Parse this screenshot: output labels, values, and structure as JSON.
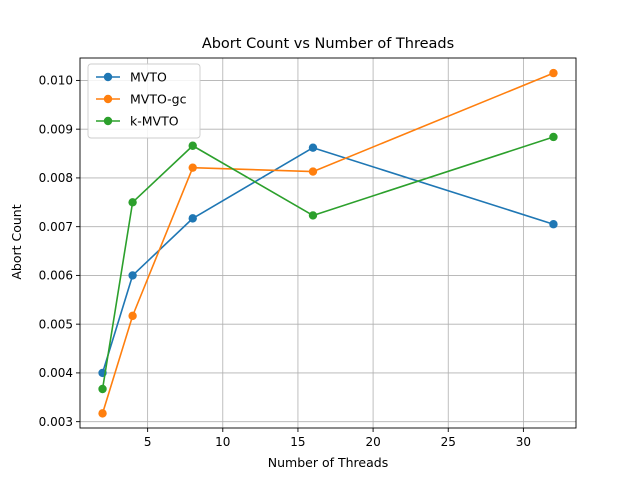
{
  "chart_data": {
    "type": "line",
    "title": "Abort Count vs Number of Threads",
    "xlabel": "Number of Threads",
    "ylabel": "Abort Count",
    "x": [
      2,
      4,
      8,
      16,
      32
    ],
    "xlim": [
      0.5,
      33.5
    ],
    "ylim": [
      0.00287,
      0.01046
    ],
    "xticks": [
      5,
      10,
      15,
      20,
      25,
      30
    ],
    "xtick_labels": [
      "5",
      "10",
      "15",
      "20",
      "25",
      "30"
    ],
    "yticks": [
      0.003,
      0.004,
      0.005,
      0.006,
      0.007,
      0.008,
      0.009,
      0.01
    ],
    "ytick_labels": [
      "0.003",
      "0.004",
      "0.005",
      "0.006",
      "0.007",
      "0.008",
      "0.009",
      "0.010"
    ],
    "grid": true,
    "legend_position": "top-left",
    "series": [
      {
        "name": "MVTO",
        "color": "#1f77b4",
        "marker": "circle",
        "values": [
          0.004,
          0.006,
          0.00717,
          0.00862,
          0.00705
        ]
      },
      {
        "name": "MVTO-gc",
        "color": "#ff7f0e",
        "marker": "circle",
        "values": [
          0.00317,
          0.00517,
          0.00821,
          0.00813,
          0.01015
        ]
      },
      {
        "name": "k-MVTO",
        "color": "#2ca02c",
        "marker": "circle",
        "values": [
          0.00367,
          0.0075,
          0.00866,
          0.00723,
          0.00884
        ]
      }
    ]
  }
}
